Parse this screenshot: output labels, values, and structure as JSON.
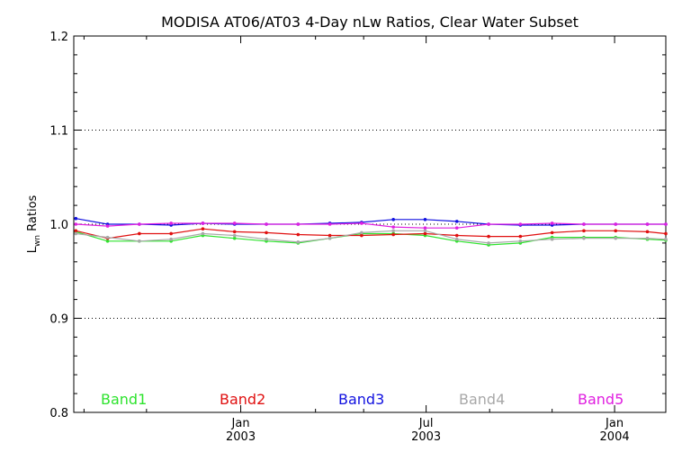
{
  "chart_data": {
    "type": "line",
    "title": "MODISA AT06/AT03 4-Day nLw Ratios, Clear Water Subset",
    "ylabel_main": "L",
    "ylabel_sub": "wn",
    "ylabel_rest": " Ratios",
    "ylim": [
      0.8,
      1.2
    ],
    "yticks": [
      0.8,
      0.9,
      1.0,
      1.1,
      1.2
    ],
    "ytick_labels": [
      "0.8",
      "0.9",
      "1.0",
      "1.1",
      "1.2"
    ],
    "y_gridlines": [
      0.9,
      1.0,
      1.1
    ],
    "x_major_ticks": [
      {
        "month": "Jan",
        "year": "2003",
        "x": "2003-01-01"
      },
      {
        "month": "Jul",
        "year": "2003",
        "x": "2003-07-01"
      },
      {
        "month": "Jan",
        "year": "2004",
        "x": "2004-01-01"
      }
    ],
    "x_minor_ticks": [
      "2002-08-01",
      "2002-10-01",
      "2003-03-15",
      "2003-05-01",
      "2003-09-01",
      "2003-11-01"
    ],
    "xlim": [
      "2002-07-22",
      "2004-02-20"
    ],
    "x": [
      "2002-07-24",
      "2002-08-24",
      "2002-09-24",
      "2002-10-25",
      "2002-11-25",
      "2002-12-26",
      "2003-01-26",
      "2003-02-26",
      "2003-03-29",
      "2003-04-29",
      "2003-05-30",
      "2003-06-30",
      "2003-07-31",
      "2003-08-31",
      "2003-10-01",
      "2003-11-01",
      "2003-12-02",
      "2004-01-02",
      "2004-02-02",
      "2004-02-20"
    ],
    "series": [
      {
        "name": "Band1",
        "color": "#2ee32e",
        "values": [
          0.992,
          0.982,
          0.982,
          0.982,
          0.988,
          0.985,
          0.982,
          0.98,
          0.985,
          0.99,
          0.99,
          0.988,
          0.982,
          0.978,
          0.98,
          0.986,
          0.986,
          0.986,
          0.984,
          0.983
        ]
      },
      {
        "name": "Band2",
        "color": "#e01010",
        "values": [
          0.993,
          0.985,
          0.99,
          0.99,
          0.995,
          0.992,
          0.991,
          0.989,
          0.988,
          0.988,
          0.989,
          0.99,
          0.988,
          0.987,
          0.987,
          0.991,
          0.993,
          0.993,
          0.992,
          0.99
        ]
      },
      {
        "name": "Band3",
        "color": "#1010e0",
        "values": [
          1.006,
          1.0,
          1.0,
          0.999,
          1.001,
          1.0,
          1.0,
          1.0,
          1.001,
          1.002,
          1.005,
          1.005,
          1.003,
          1.0,
          0.999,
          0.999,
          1.0,
          1.0,
          1.0,
          1.0
        ]
      },
      {
        "name": "Band4",
        "color": "#a8a8a8",
        "values": [
          0.99,
          0.986,
          0.982,
          0.984,
          0.99,
          0.988,
          0.984,
          0.981,
          0.985,
          0.991,
          0.993,
          0.993,
          0.984,
          0.98,
          0.982,
          0.984,
          0.985,
          0.985,
          0.985,
          0.984
        ]
      },
      {
        "name": "Band5",
        "color": "#e020e0",
        "values": [
          1.0,
          0.998,
          1.0,
          1.001,
          1.001,
          1.001,
          1.0,
          1.0,
          1.0,
          1.001,
          0.997,
          0.996,
          0.996,
          1.0,
          1.0,
          1.001,
          1.0,
          1.0,
          1.0,
          1.0
        ]
      }
    ],
    "legend_placement": "bottom inside plot, horizontal",
    "grid": "dotted horizontal lines at 0.9, 1.0, 1.1"
  }
}
